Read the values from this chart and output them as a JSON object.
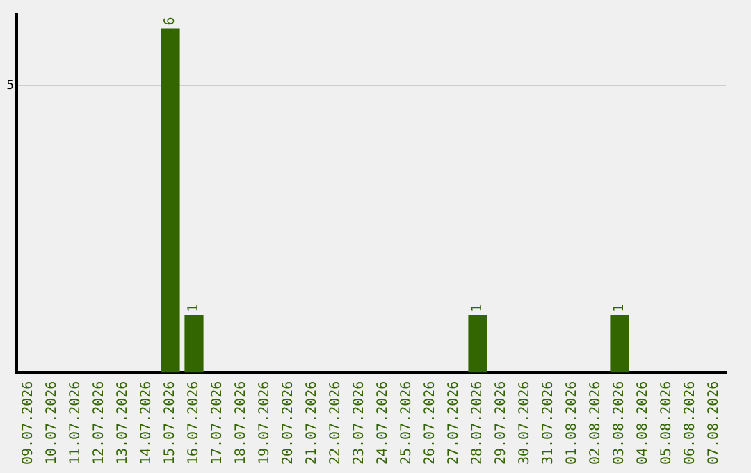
{
  "chart_data": {
    "type": "bar",
    "categories": [
      "09.07.2026",
      "10.07.2026",
      "11.07.2026",
      "12.07.2026",
      "13.07.2026",
      "14.07.2026",
      "15.07.2026",
      "16.07.2026",
      "17.07.2026",
      "18.07.2026",
      "19.07.2026",
      "20.07.2026",
      "21.07.2026",
      "22.07.2026",
      "23.07.2026",
      "24.07.2026",
      "25.07.2026",
      "26.07.2026",
      "27.07.2026",
      "28.07.2026",
      "29.07.2026",
      "30.07.2026",
      "31.07.2026",
      "01.08.2026",
      "02.08.2026",
      "03.08.2026",
      "04.08.2026",
      "05.08.2026",
      "06.08.2026",
      "07.08.2026"
    ],
    "values": [
      0,
      0,
      0,
      0,
      0,
      0,
      6,
      1,
      0,
      0,
      0,
      0,
      0,
      0,
      0,
      0,
      0,
      0,
      0,
      1,
      0,
      0,
      0,
      0,
      0,
      1,
      0,
      0,
      0,
      0
    ],
    "value_labels": [
      null,
      null,
      null,
      null,
      null,
      null,
      "6",
      "1",
      null,
      null,
      null,
      null,
      null,
      null,
      null,
      null,
      null,
      null,
      null,
      "1",
      null,
      null,
      null,
      null,
      null,
      "1",
      null,
      null,
      null,
      null
    ],
    "color": "#336600",
    "ylim": [
      0,
      6.25
    ],
    "yticks": [
      5
    ],
    "grid": "y",
    "legend": false
  }
}
